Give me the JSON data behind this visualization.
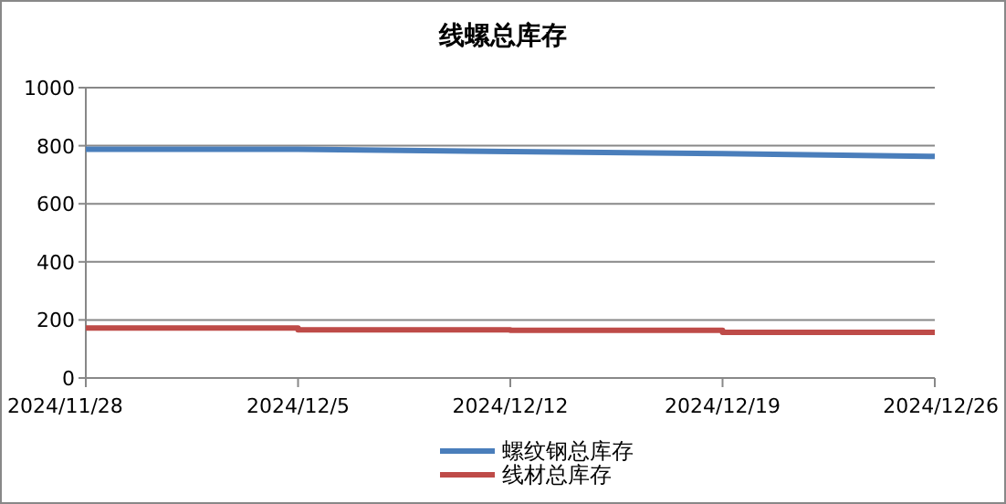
{
  "chart_data": {
    "type": "line",
    "title": "线螺总库存",
    "categories": [
      "2024/11/28",
      "2024/12/5",
      "2024/12/12",
      "2024/12/19",
      "2024/12/26"
    ],
    "series": [
      {
        "name": "螺纹钢总库存",
        "color": "#4a7ebb",
        "values": [
          788,
          788,
          780,
          773,
          763
        ]
      },
      {
        "name": "线材总库存",
        "color": "#be4b48",
        "type": "step",
        "values": [
          172,
          166,
          164,
          157,
          157
        ]
      }
    ],
    "ylim": [
      0,
      1000
    ],
    "yticks": [
      0,
      200,
      400,
      600,
      800,
      1000
    ],
    "grid": "y",
    "legend": "bottom",
    "marker": "none",
    "line_style": "solid"
  }
}
